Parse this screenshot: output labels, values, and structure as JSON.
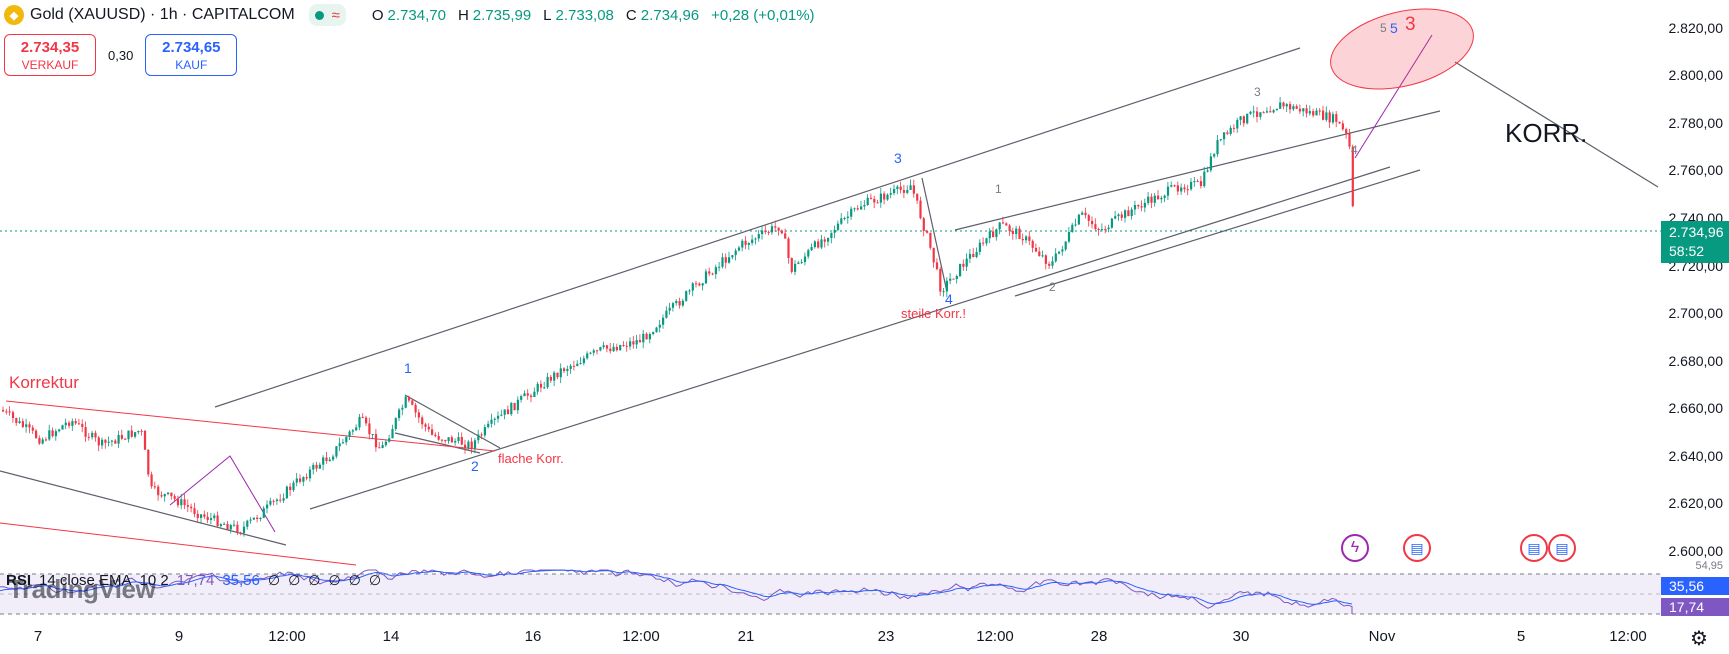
{
  "header": {
    "symbol_title": "Gold (XAUUSD) · 1h · CAPITALCOM",
    "status_wave": "≈",
    "ohlc": {
      "o_label": "O",
      "o_value": "2.734,70",
      "h_label": "H",
      "h_value": "2.735,99",
      "l_label": "L",
      "l_value": "2.733,08",
      "c_label": "C",
      "c_value": "2.734,96",
      "change": "+0,28 (+0,01%)"
    }
  },
  "trade_panel": {
    "sell_price": "2.734,35",
    "sell_label": "VERKAUF",
    "spread": "0,30",
    "buy_price": "2.734,65",
    "buy_label": "KAUF"
  },
  "price_axis": {
    "labels": [
      "2.820,00",
      "2.800,00",
      "2.780,00",
      "2.760,00",
      "2.740,00",
      "2.720,00",
      "2.700,00",
      "2.680,00",
      "2.660,00",
      "2.640,00",
      "2.620,00",
      "2.600,00"
    ],
    "current_price": "2.734,96",
    "countdown": "58:52",
    "partial_label": "54,95",
    "rsi_value": "35,56",
    "rsi_ma_value": "17,74"
  },
  "time_axis": {
    "labels": [
      "7",
      "9",
      "12:00",
      "14",
      "16",
      "12:00",
      "21",
      "23",
      "12:00",
      "28",
      "30",
      "Nov",
      "5",
      "12:00"
    ]
  },
  "annotations": {
    "korrektur": "Korrektur",
    "flache_korr": "flache Korr.",
    "steile_korr": "steile Korr.!",
    "korr": "KORR.",
    "wave_1_blue": "1",
    "wave_2_blue": "2",
    "wave_3_blue": "3",
    "wave_4_blue": "4",
    "wave_1_grey": "1",
    "wave_2_grey": "2",
    "wave_3_grey": "3",
    "wave_4_grey": "4",
    "wave_5_grey": "5",
    "wave_5_blue": "5",
    "wave_3_red": "3"
  },
  "rsi_panel": {
    "indicator": "RSI",
    "source": "14 close EMA",
    "ma_len": "10 2",
    "value_1": "17,74",
    "value_2": "35,56",
    "null_icons": [
      "∅",
      "∅",
      "∅",
      "∅",
      "∅",
      "∅"
    ]
  },
  "watermark": "TradingView",
  "colors": {
    "up": "#089981",
    "down": "#f23645",
    "blue": "#2962ff",
    "purple": "#9c27b0",
    "rsi_line": "#7e57c2"
  },
  "icons": [
    "gold-coin-icon",
    "status-dot-icon",
    "wave-icon",
    "null-icon",
    "lightning-icon",
    "us-flag-icon",
    "settings-gear-icon"
  ]
}
